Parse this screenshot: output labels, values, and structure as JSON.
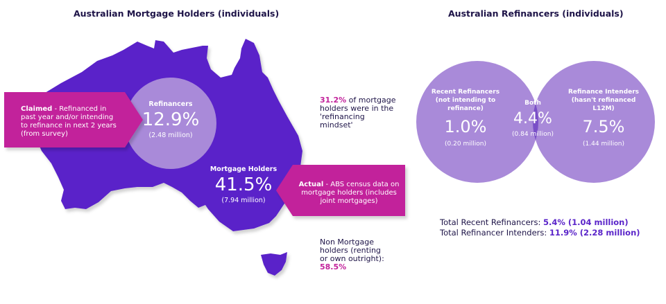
{
  "left": {
    "title": "Australian Mortgage Holders (individuals)",
    "refinancers": {
      "label": "Refinancers",
      "value": "12.9%",
      "sub": "(2.48 million)"
    },
    "mortgage_holders": {
      "label": "Mortgage Holders",
      "value": "41.5%",
      "sub": "(7.94 million)"
    },
    "claimed_callout": {
      "bold": "Claimed",
      "text": " - Refinanced in past year and/or intending to refinance in next 2 years (from survey)"
    },
    "actual_callout": {
      "bold": "Actual",
      "text": " - ABS census data on mortgage holders (includes joint mortgages)"
    },
    "mindset_note": {
      "pct": "31.2%",
      "text": " of mortgage holders were in the 'refinancing mindset'"
    },
    "non_mortgage_note": {
      "text": "Non Mortgage holders (renting or own outright):",
      "pct": "58.5%"
    }
  },
  "right": {
    "title": "Australian Refinancers (individuals)",
    "recent": {
      "label": "Recent Refinancers (not intending to refinance)",
      "value": "1.0%",
      "sub": "(0.20 million)"
    },
    "both": {
      "label": "Both",
      "value": "4.4%",
      "sub": "(0.84 million)"
    },
    "intenders": {
      "label": "Refinance Intenders (hasn't refinanced L12M)",
      "value": "7.5%",
      "sub": "(1.44 million)"
    },
    "total_recent": {
      "label": "Total Recent Refinancers: ",
      "value": "5.4% (1.04 million)"
    },
    "total_intenders": {
      "label": "Total Refinancer Intenders: ",
      "value": "11.9% (2.28 million)"
    }
  },
  "colors": {
    "map": "#5a24c9",
    "circle_light": "#a98ad9",
    "both_overlap": "#7a4fc7",
    "venn": "#a98ad9",
    "magenta": "#c2229b",
    "dark_text": "#1e1448"
  }
}
